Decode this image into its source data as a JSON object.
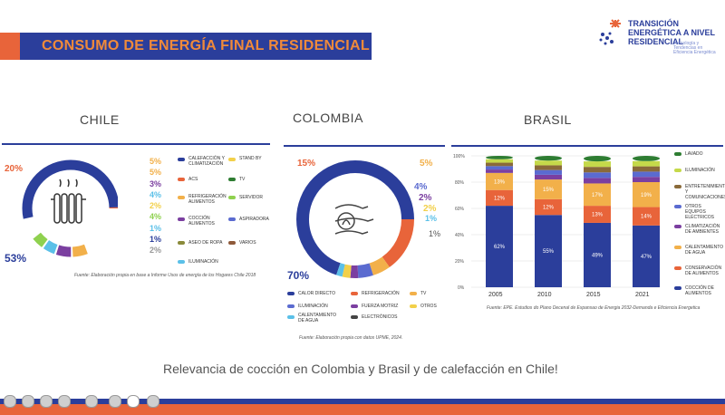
{
  "title": "CONSUMO DE ENERGÍA FINAL RESIDENCIAL",
  "logo": {
    "line1": "TRANSICIÓN",
    "line2": "ENERGÉTICA A NIVEL",
    "line3": "RESIDENCIAL",
    "sub": "Tecnología y Tendencias en Eficiencia Energética"
  },
  "countries": {
    "chile": "CHILE",
    "colombia": "COLOMBIA",
    "brasil": "BRASIL"
  },
  "chile": {
    "big_pct": "53%",
    "left_pct": "20%",
    "right_pcts": [
      "5%",
      "5%",
      "3%",
      "4%",
      "2%",
      "4%",
      "1%",
      "1%",
      "2%"
    ],
    "legend_col1": [
      "CALEFACCIÓN Y CLIMATIZACIÓN",
      "ACS",
      "REFRIGERACIÓN ALIMENTOS",
      "COCCIÓN ALIMENTOS",
      "ASEO DE ROPA",
      "ILUMINACIÓN"
    ],
    "legend_col2": [
      "STAND BY",
      "TV",
      "SERVIDOR",
      "ASPIRADORA",
      "VARIOS"
    ],
    "source": "Fuente: Elaboración propia en base a Informe Usos de energía de los Hogares Chile 2018"
  },
  "colombia": {
    "big_pct": "70%",
    "pcts": [
      "15%",
      "5%",
      "4%",
      "2%",
      "2%",
      "1%",
      "1%"
    ],
    "legend": [
      "CALOR DIRECTO",
      "REFRIGERACIÓN",
      "TV",
      "ILUMINACIÓN",
      "FUERZA MOTRIZ",
      "OTROS",
      "CALENTAMIENTO DE AGUA",
      "ELECTRÓNICOS"
    ],
    "source": "Fuente: Elaboración propia con datos UPME, 2024."
  },
  "brasil": {
    "axis": [
      "100%",
      "80%",
      "60%",
      "40%",
      "20%",
      "0%"
    ],
    "years": [
      "2005",
      "2010",
      "2015",
      "2021"
    ],
    "coccion": [
      "62%",
      "55%",
      "49%",
      "47%"
    ],
    "conservacion": [
      "12%",
      "12%",
      "13%",
      "14%"
    ],
    "calentamiento": [
      "13%",
      "15%",
      "17%",
      "19%"
    ],
    "legend": [
      "LAVADO",
      "ILUMINACIÓN",
      "ENTRETENIMIENTO Y COMUNICACIONES",
      "OTROS EQUIPOS ELÉCTRICOS",
      "CLIMATIZACIÓN DE AMBIENTES",
      "CALENTAMIENTO DE AGUA",
      "CONSERVACIÓN DE ALIMENTOS",
      "COCCIÓN DE ALIMENTOS"
    ],
    "source": "Fuente: EPE. Estudios do Plano Decenal de Expansao de Energia 2032-Demanda e Eficiencia Energetica"
  },
  "chart_data": [
    {
      "type": "pie",
      "values": [
        53,
        20,
        5,
        5,
        3,
        4,
        2,
        4,
        1,
        1,
        2
      ]
    },
    {
      "type": "pie",
      "values": [
        70,
        15,
        5,
        4,
        2,
        2,
        1,
        1
      ]
    },
    {
      "type": "bar",
      "categories": [
        "2005",
        "2010",
        "2015",
        "2021"
      ],
      "ylim": [
        0,
        100
      ],
      "series": [
        {
          "name": "COCCIÓN DE ALIMENTOS",
          "values": [
            62,
            55,
            49,
            47
          ]
        },
        {
          "name": "CONSERVACIÓN DE ALIMENTOS",
          "values": [
            12,
            12,
            13,
            14
          ]
        },
        {
          "name": "CALENTAMIENTO DE AGUA",
          "values": [
            13,
            15,
            17,
            19
          ]
        }
      ]
    }
  ],
  "bottom_text": "Relevancia de cocción en Colombia y Brasil y de calefacción en Chile!"
}
